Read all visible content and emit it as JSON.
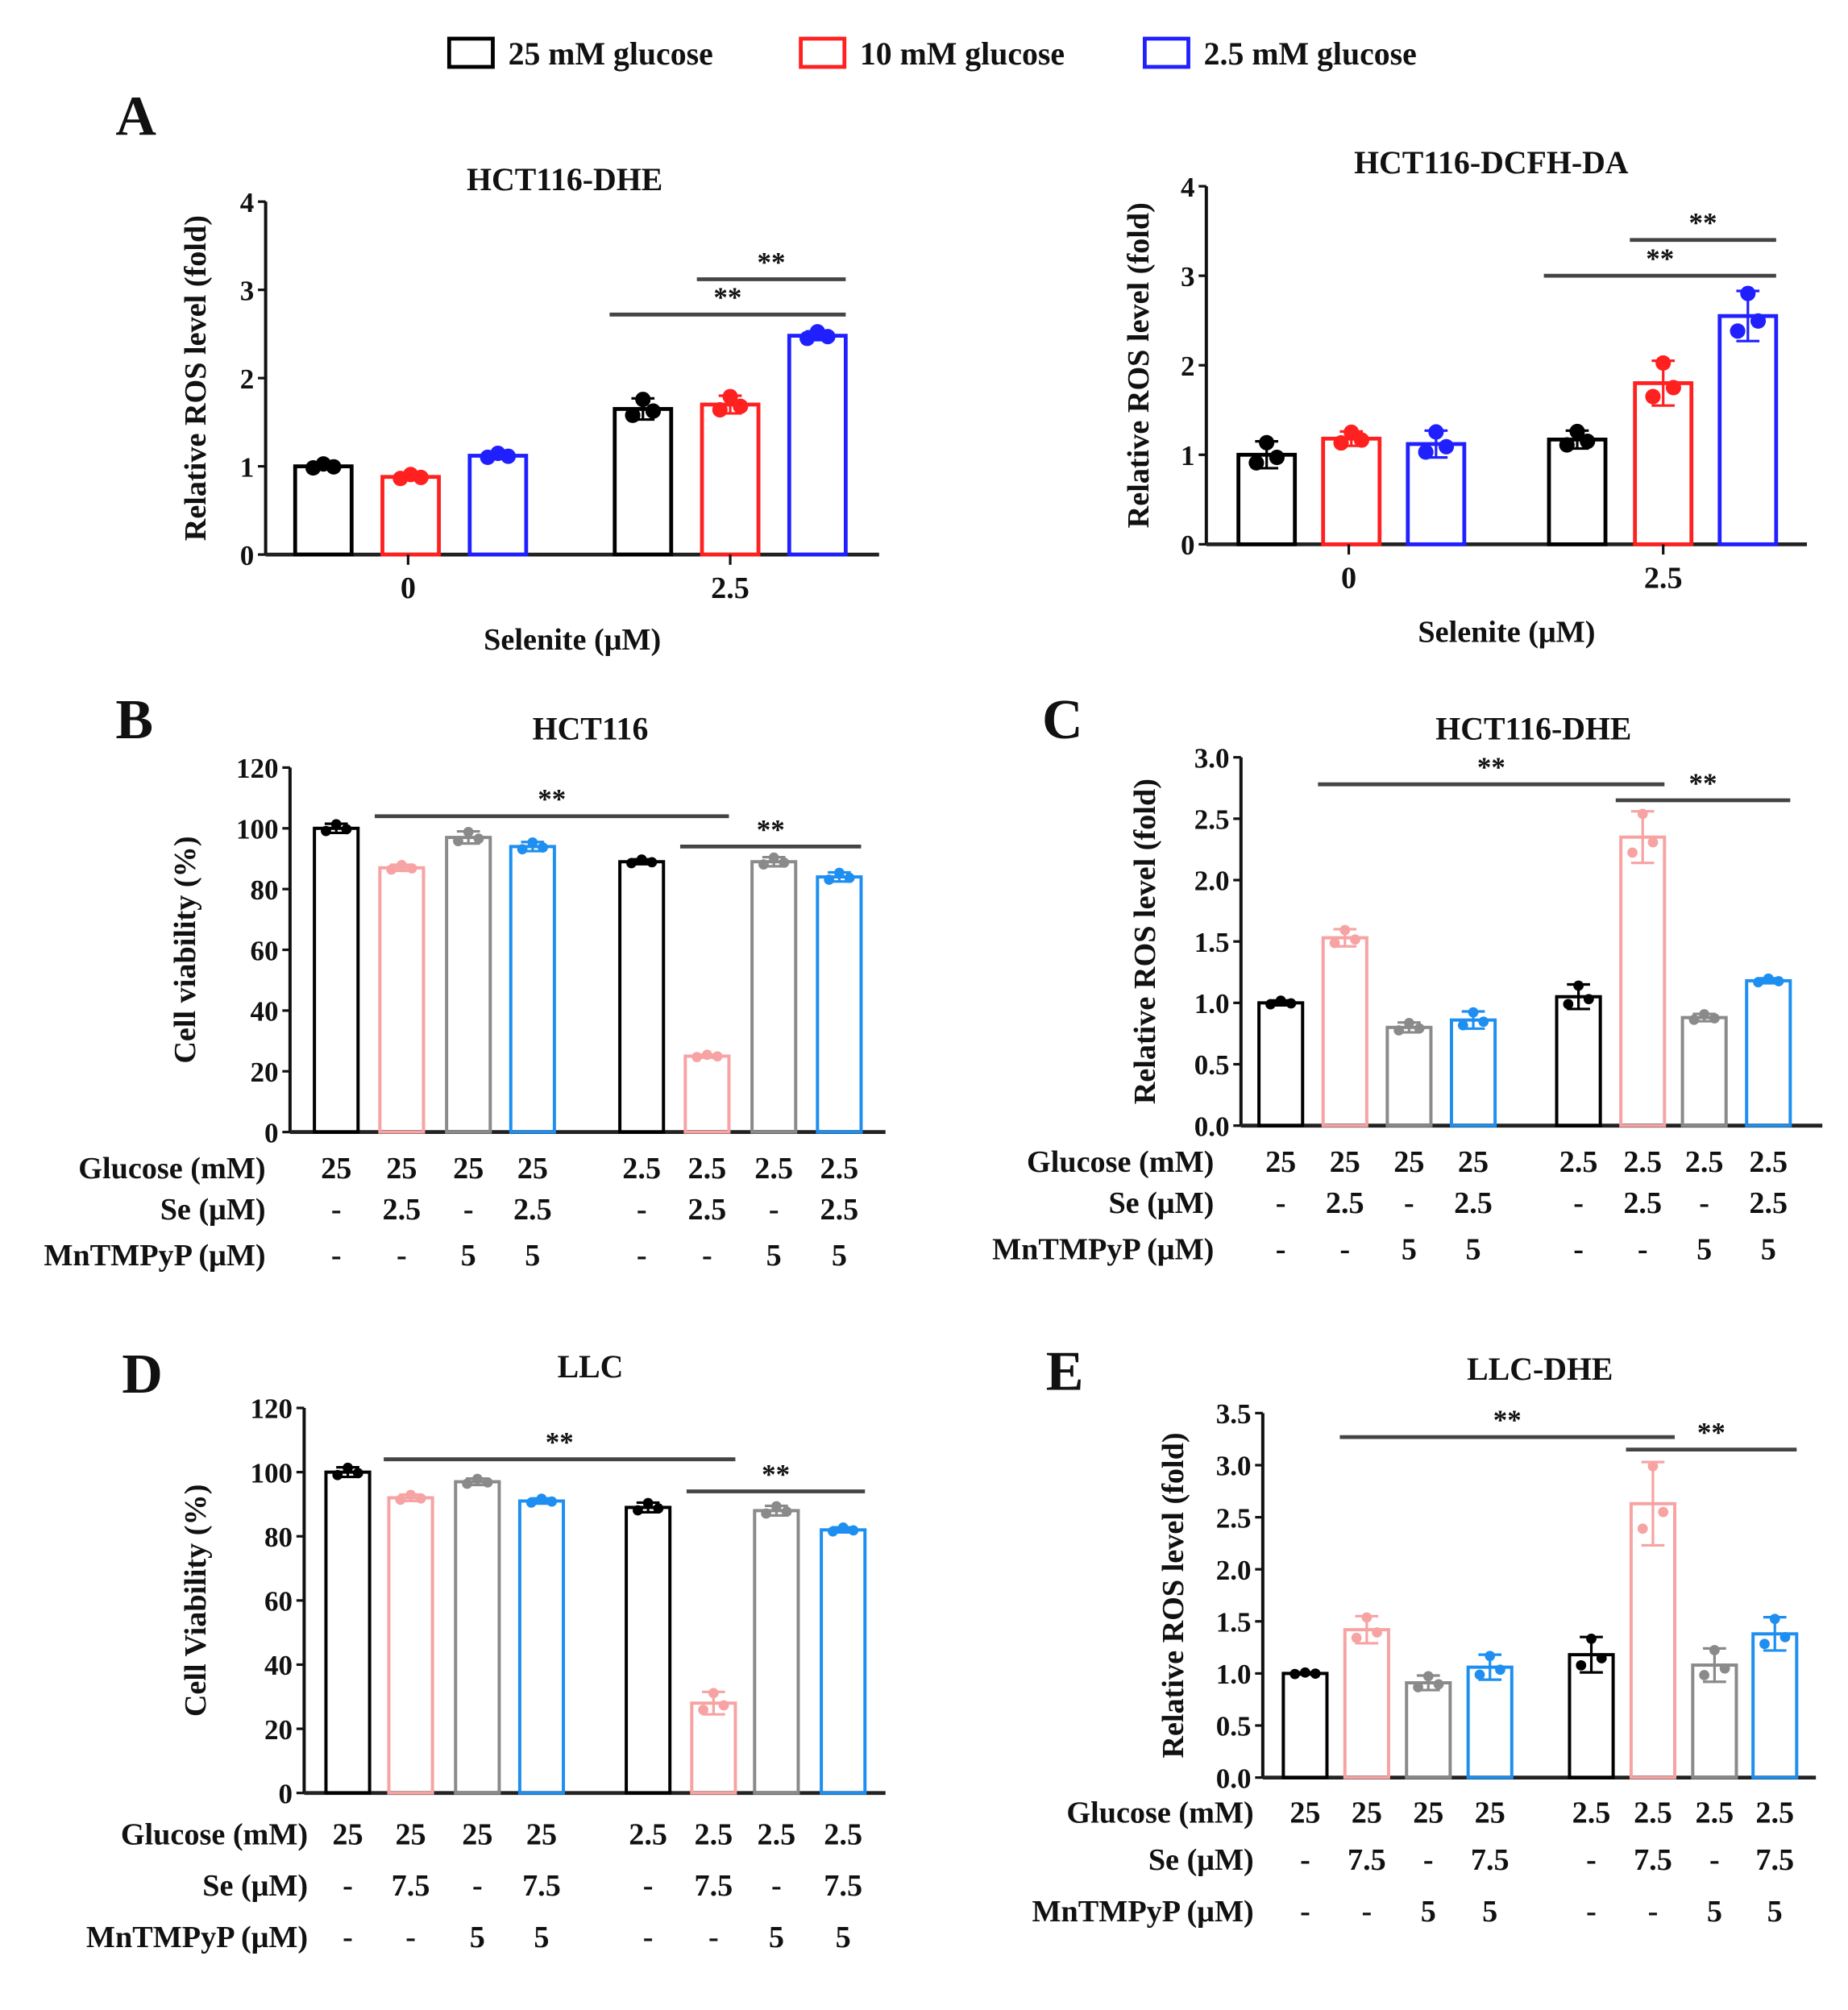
{
  "legend": [
    {
      "label": "25 mM glucose",
      "color": "#000000"
    },
    {
      "label": "10 mM glucose",
      "color": "#ff2020"
    },
    {
      "label": "2.5 mM glucose",
      "color": "#2020ff"
    }
  ],
  "chart_data": [
    {
      "panel": "A",
      "type": "bar",
      "title": "HCT116-DHE",
      "ylabel": "Relative ROS level  (fold)",
      "xlabel": "Selenite (μM)",
      "ylim": [
        0,
        4
      ],
      "yticks": [
        "0",
        "1",
        "2",
        "3",
        "4"
      ],
      "categories": [
        "0",
        "2.5"
      ],
      "series": [
        {
          "name": "25 mM glucose",
          "color": "#000000",
          "values": [
            1.0,
            1.65
          ],
          "errors": [
            0.03,
            0.12
          ]
        },
        {
          "name": "10 mM glucose",
          "color": "#ff2020",
          "values": [
            0.88,
            1.7
          ],
          "errors": [
            0.03,
            0.1
          ]
        },
        {
          "name": "2.5 mM glucose",
          "color": "#2020ff",
          "values": [
            1.12,
            2.48
          ],
          "errors": [
            0.03,
            0.05
          ]
        }
      ],
      "significance": [
        {
          "from": 3,
          "to": 5,
          "level": 2.72,
          "label": "**"
        },
        {
          "from": 4,
          "to": 5,
          "level": 3.12,
          "label": "**"
        }
      ]
    },
    {
      "panel": "",
      "type": "bar",
      "title": "HCT116-DCFH-DA",
      "ylabel": "Relative ROS level  (fold)",
      "xlabel": "Selenite (μM)",
      "ylim": [
        0,
        4
      ],
      "yticks": [
        "0",
        "1",
        "2",
        "3",
        "4"
      ],
      "categories": [
        "0",
        "2.5"
      ],
      "series": [
        {
          "name": "25 mM glucose",
          "color": "#000000",
          "values": [
            1.0,
            1.17
          ],
          "errors": [
            0.15,
            0.1
          ]
        },
        {
          "name": "10 mM glucose",
          "color": "#ff2020",
          "values": [
            1.18,
            1.8
          ],
          "errors": [
            0.08,
            0.25
          ]
        },
        {
          "name": "2.5 mM glucose",
          "color": "#2020ff",
          "values": [
            1.12,
            2.55
          ],
          "errors": [
            0.15,
            0.28
          ]
        }
      ],
      "significance": [
        {
          "from": 3,
          "to": 5,
          "level": 3.0,
          "label": "**"
        },
        {
          "from": 4,
          "to": 5,
          "level": 3.4,
          "label": "**"
        }
      ]
    },
    {
      "panel": "B",
      "type": "bar",
      "title": "HCT116",
      "ylabel": "Cell viability (%)",
      "ylim": [
        0,
        120
      ],
      "yticks": [
        "0",
        "20",
        "40",
        "60",
        "80",
        "100",
        "120"
      ],
      "values": [
        100,
        87,
        97,
        94,
        89,
        25,
        89,
        84
      ],
      "errors": [
        1.5,
        1,
        2,
        1.5,
        0.8,
        0.5,
        1.5,
        1.5
      ],
      "colors": [
        "#000000",
        "#f7a3a3",
        "#8a8a8a",
        "#1e8ff0",
        "#000000",
        "#f7a3a3",
        "#8a8a8a",
        "#1e8ff0"
      ],
      "table": [
        {
          "label": "Glucose (mM)",
          "cells": [
            "25",
            "25",
            "25",
            "25",
            "2.5",
            "2.5",
            "2.5",
            "2.5"
          ]
        },
        {
          "label": "Se (μM)",
          "cells": [
            "-",
            "2.5",
            "-",
            "2.5",
            "-",
            "2.5",
            "-",
            "2.5"
          ]
        },
        {
          "label": "MnTMPyP (μM)",
          "cells": [
            "-",
            "-",
            "5",
            "5",
            "-",
            "-",
            "5",
            "5"
          ]
        }
      ],
      "significance": [
        {
          "from": 1,
          "to": 5,
          "level": 104,
          "label": "**"
        },
        {
          "from": 5,
          "to": 7,
          "level": 94,
          "label": "**"
        }
      ]
    },
    {
      "panel": "C",
      "type": "bar",
      "title": "HCT116-DHE",
      "ylabel": "Relative ROS level  (fold)",
      "ylim": [
        0,
        3
      ],
      "yticks": [
        "0.0",
        "0.5",
        "1.0",
        "1.5",
        "2.0",
        "2.5",
        "3.0"
      ],
      "values": [
        1.0,
        1.53,
        0.8,
        0.86,
        1.05,
        2.35,
        0.88,
        1.18
      ],
      "errors": [
        0.02,
        0.07,
        0.04,
        0.07,
        0.1,
        0.21,
        0.03,
        0.02
      ],
      "colors": [
        "#000000",
        "#f7a3a3",
        "#8a8a8a",
        "#1e8ff0",
        "#000000",
        "#f7a3a3",
        "#8a8a8a",
        "#1e8ff0"
      ],
      "table": [
        {
          "label": "Glucose (mM)",
          "cells": [
            "25",
            "25",
            "25",
            "25",
            "2.5",
            "2.5",
            "2.5",
            "2.5"
          ]
        },
        {
          "label": "Se (μM)",
          "cells": [
            "-",
            "2.5",
            "-",
            "2.5",
            "-",
            "2.5",
            "-",
            "2.5"
          ]
        },
        {
          "label": "MnTMPyP (μM)",
          "cells": [
            "-",
            "-",
            "5",
            "5",
            "-",
            "-",
            "5",
            "5"
          ]
        }
      ],
      "significance": [
        {
          "from": 1,
          "to": 5,
          "level": 2.78,
          "label": "**"
        },
        {
          "from": 5,
          "to": 7,
          "level": 2.65,
          "label": "**"
        }
      ]
    },
    {
      "panel": "D",
      "type": "bar",
      "title": "LLC",
      "ylabel": "Cell Viability (%)",
      "ylim": [
        0,
        120
      ],
      "yticks": [
        "0",
        "20",
        "40",
        "60",
        "80",
        "100",
        "120"
      ],
      "values": [
        100,
        92,
        97,
        91,
        89,
        28,
        88,
        82
      ],
      "errors": [
        1.5,
        1,
        1,
        0.8,
        1.5,
        3.5,
        1.5,
        0.8
      ],
      "colors": [
        "#000000",
        "#f7a3a3",
        "#8a8a8a",
        "#1e8ff0",
        "#000000",
        "#f7a3a3",
        "#8a8a8a",
        "#1e8ff0"
      ],
      "table": [
        {
          "label": "Glucose (mM)",
          "cells": [
            "25",
            "25",
            "25",
            "25",
            "2.5",
            "2.5",
            "2.5",
            "2.5"
          ]
        },
        {
          "label": "Se (μM)",
          "cells": [
            "-",
            "7.5",
            "-",
            "7.5",
            "-",
            "7.5",
            "-",
            "7.5"
          ]
        },
        {
          "label": "MnTMPyP (μM)",
          "cells": [
            "-",
            "-",
            "5",
            "5",
            "-",
            "-",
            "5",
            "5"
          ]
        }
      ],
      "significance": [
        {
          "from": 1,
          "to": 5,
          "level": 104,
          "label": "**"
        },
        {
          "from": 5,
          "to": 7,
          "level": 94,
          "label": "**"
        }
      ]
    },
    {
      "panel": "E",
      "type": "bar",
      "title": "LLC-DHE",
      "ylabel": "Relative ROS level  (fold)",
      "ylim": [
        0,
        3.5
      ],
      "yticks": [
        "0.0",
        "0.5",
        "1.0",
        "1.5",
        "2.0",
        "2.5",
        "3.0",
        "3.5"
      ],
      "values": [
        1.0,
        1.42,
        0.91,
        1.06,
        1.18,
        2.63,
        1.08,
        1.38
      ],
      "errors": [
        0.01,
        0.13,
        0.07,
        0.12,
        0.17,
        0.4,
        0.16,
        0.16
      ],
      "colors": [
        "#000000",
        "#f7a3a3",
        "#8a8a8a",
        "#1e8ff0",
        "#000000",
        "#f7a3a3",
        "#8a8a8a",
        "#1e8ff0"
      ],
      "table": [
        {
          "label": "Glucose (mM)",
          "cells": [
            "25",
            "25",
            "25",
            "25",
            "2.5",
            "2.5",
            "2.5",
            "2.5"
          ]
        },
        {
          "label": "Se (μM)",
          "cells": [
            "-",
            "7.5",
            "-",
            "7.5",
            "-",
            "7.5",
            "-",
            "7.5"
          ]
        },
        {
          "label": "MnTMPyP (μM)",
          "cells": [
            "-",
            "-",
            "5",
            "5",
            "-",
            "-",
            "5",
            "5"
          ]
        }
      ],
      "significance": [
        {
          "from": 1,
          "to": 5,
          "level": 3.27,
          "label": "**"
        },
        {
          "from": 5,
          "to": 7,
          "level": 3.15,
          "label": "**"
        }
      ]
    }
  ]
}
